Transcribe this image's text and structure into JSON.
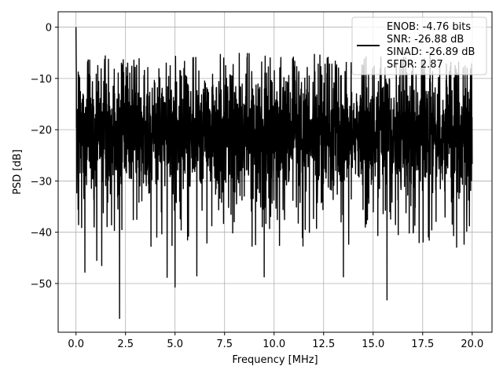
{
  "chart_data": {
    "type": "line",
    "title": "",
    "xlabel": "Frequency [MHz]",
    "ylabel": "PSD [dB]",
    "xlim": [
      -0.9,
      21.0
    ],
    "ylim": [
      -59.5,
      3.0
    ],
    "x_ticks": [
      0.0,
      2.5,
      5.0,
      7.5,
      10.0,
      12.5,
      15.0,
      17.5,
      20.0
    ],
    "x_tick_labels": [
      "0.0",
      "2.5",
      "5.0",
      "7.5",
      "10.0",
      "12.5",
      "15.0",
      "17.5",
      "20.0"
    ],
    "y_ticks": [
      0,
      -10,
      -20,
      -30,
      -40,
      -50
    ],
    "y_tick_labels": [
      "0",
      "−10",
      "−20",
      "−30",
      "−40",
      "−50"
    ],
    "grid": true,
    "legend_position": "top-right",
    "series": [
      {
        "color": "#000000",
        "x_range": [
          0.0,
          20.0
        ],
        "peak": {
          "x": 0.0,
          "y": 0.0
        },
        "noise_floor_median_db": -21,
        "upper_envelope_db": -8,
        "lower_envelope_db": -33,
        "deep_nulls": [
          {
            "x": 0.45,
            "y": -47.8
          },
          {
            "x": 1.05,
            "y": -45.5
          },
          {
            "x": 1.3,
            "y": -46.5
          },
          {
            "x": 2.2,
            "y": -56.8
          },
          {
            "x": 4.6,
            "y": -48.8
          },
          {
            "x": 5.0,
            "y": -50.7
          },
          {
            "x": 6.1,
            "y": -48.5
          },
          {
            "x": 9.5,
            "y": -48.7
          },
          {
            "x": 13.5,
            "y": -48.7
          },
          {
            "x": 15.7,
            "y": -53.2
          }
        ]
      }
    ],
    "legend": {
      "lines": [
        "ENOB: -4.76 bits",
        "SNR: -26.88 dB",
        "SINAD: -26.89 dB",
        "SFDR: 2.87"
      ]
    },
    "colors": {
      "line": "#000000",
      "grid": "#b0b0b0",
      "axes": "#000000",
      "background": "#ffffff"
    }
  }
}
